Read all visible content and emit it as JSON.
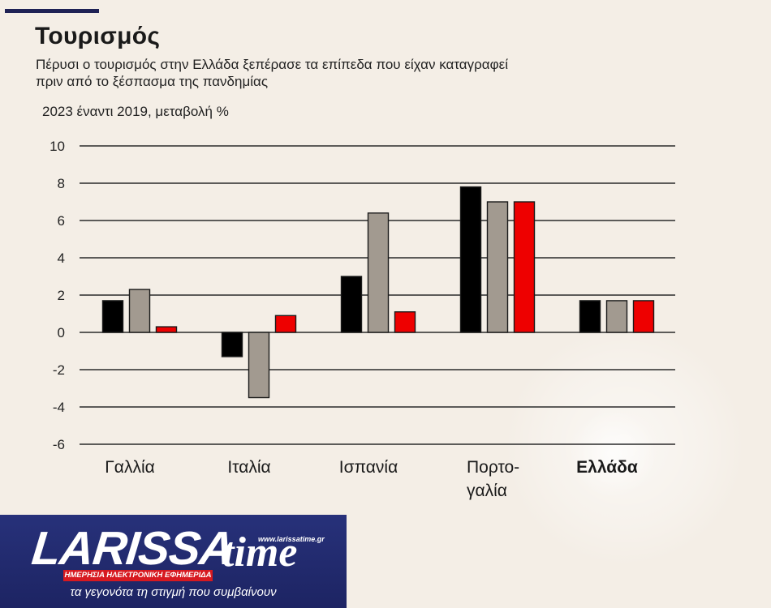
{
  "header": {
    "title": "Τουρισμός",
    "subtitle_line1": "Πέρυσι ο τουρισμός στην Ελλάδα ξεπέρασε τα επίπεδα που είχαν καταγραφεί",
    "subtitle_line2": "πριν από το ξέσπασμα της πανδημίας",
    "unit": "2023 έναντι 2019, μεταβολή %",
    "accent_color": "#1f2255"
  },
  "chart_data": {
    "type": "bar",
    "title": "Τουρισμός",
    "subtitle": "2023 έναντι 2019, μεταβολή %",
    "categories": [
      "Γαλλία",
      "Ιταλία",
      "Ισπανία",
      "Πορτο-γαλία",
      "Ελλάδα"
    ],
    "category_lines": [
      [
        "Γαλλία"
      ],
      [
        "Ιταλία"
      ],
      [
        "Ισπανία"
      ],
      [
        "Πορτο-",
        "γαλία"
      ],
      [
        "Ελλάδα"
      ]
    ],
    "highlighted_category": "Ελλάδα",
    "series": [
      {
        "color": "#000000",
        "values": [
          1.7,
          -1.3,
          3.0,
          7.8,
          1.7
        ]
      },
      {
        "color": "#a29a90",
        "values": [
          2.3,
          -3.5,
          6.4,
          7.0,
          1.7
        ]
      },
      {
        "color": "#ee0000",
        "values": [
          0.3,
          0.9,
          1.1,
          7.0,
          1.7
        ]
      }
    ],
    "ylim": [
      -6,
      10
    ],
    "yticks": [
      10,
      8,
      6,
      4,
      2,
      0,
      -2,
      -4,
      -6
    ],
    "grid": true,
    "legend": "none"
  },
  "banner": {
    "logo_main": "LARISSA",
    "logo_time": "time",
    "url": "www.larissatime.gr",
    "strip": "ΗΜΕΡΗΣΙΑ ΗΛΕΚΤΡΟΝΙΚΗ ΕΦΗΜΕΡΙΔΑ",
    "tagline": "τα γεγονότα τη στιγμή που συμβαίνουν",
    "background_color": "#27317a",
    "strip_color": "#d71920"
  }
}
